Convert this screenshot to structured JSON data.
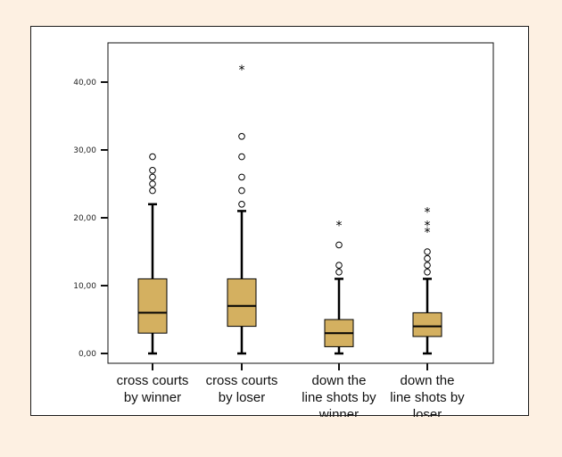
{
  "chart_data": {
    "type": "box",
    "title": "",
    "xlabel": "",
    "ylabel": "",
    "ylim": [
      0,
      45
    ],
    "y_ticks": [
      "0,00",
      "10,00",
      "20,00",
      "30,00",
      "40,00"
    ],
    "y_tick_values": [
      0,
      10,
      20,
      30,
      40
    ],
    "grid": false,
    "legend": "none",
    "box_color": "#d4b060",
    "categories": [
      [
        "cross courts",
        "by winner"
      ],
      [
        "cross courts",
        "by loser"
      ],
      [
        "down the",
        "line shots by",
        "winner"
      ],
      [
        "down the",
        "line shots by",
        "loser"
      ]
    ],
    "series": [
      {
        "whisker_low": 0,
        "q1": 3,
        "median": 6,
        "q3": 11,
        "whisker_high": 22,
        "outliers": [
          24,
          25,
          26,
          27,
          29
        ],
        "extremes": []
      },
      {
        "whisker_low": 0,
        "q1": 4,
        "median": 7,
        "q3": 11,
        "whisker_high": 21,
        "outliers": [
          22,
          24,
          26,
          29,
          32
        ],
        "extremes": [
          42
        ]
      },
      {
        "whisker_low": 0,
        "q1": 1,
        "median": 3,
        "q3": 5,
        "whisker_high": 11,
        "outliers": [
          12,
          13,
          16
        ],
        "extremes": [
          19
        ]
      },
      {
        "whisker_low": 0,
        "q1": 2.5,
        "median": 4,
        "q3": 6,
        "whisker_high": 11,
        "outliers": [
          12,
          13,
          14,
          15
        ],
        "extremes": [
          18,
          19,
          21
        ]
      }
    ]
  }
}
